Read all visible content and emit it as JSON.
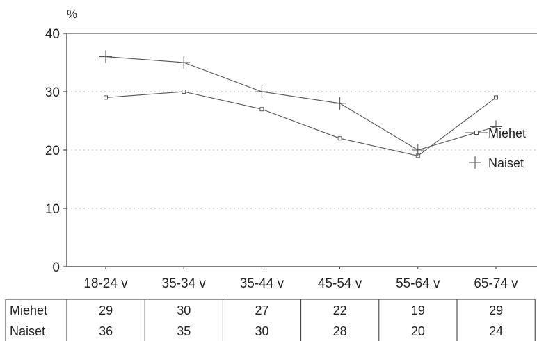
{
  "chart_data": {
    "type": "line",
    "title": "",
    "ylabel": "%",
    "xlabel": "",
    "ylim": [
      0,
      40
    ],
    "yticks": [
      0,
      10,
      20,
      30,
      40
    ],
    "grid": true,
    "grid_style": "dotted",
    "legend_placement": "right",
    "categories": [
      "18-24 v",
      "35-34 v",
      "35-44 v",
      "45-54 v",
      "55-64 v",
      "65-74 v"
    ],
    "series": [
      {
        "name": "Miehet",
        "marker": "square",
        "values": [
          29,
          30,
          27,
          22,
          19,
          29
        ]
      },
      {
        "name": "Naiset",
        "marker": "plus",
        "values": [
          36,
          35,
          30,
          28,
          20,
          24
        ]
      }
    ],
    "table": {
      "rows": [
        {
          "label": "Miehet",
          "values": [
            "29",
            "30",
            "27",
            "22",
            "19",
            "29"
          ]
        },
        {
          "label": "Naiset",
          "values": [
            "36",
            "35",
            "30",
            "28",
            "20",
            "24"
          ]
        }
      ]
    },
    "colors": {
      "line": "#555555",
      "axis": "#333333",
      "grid": "#bbbbbb"
    }
  }
}
